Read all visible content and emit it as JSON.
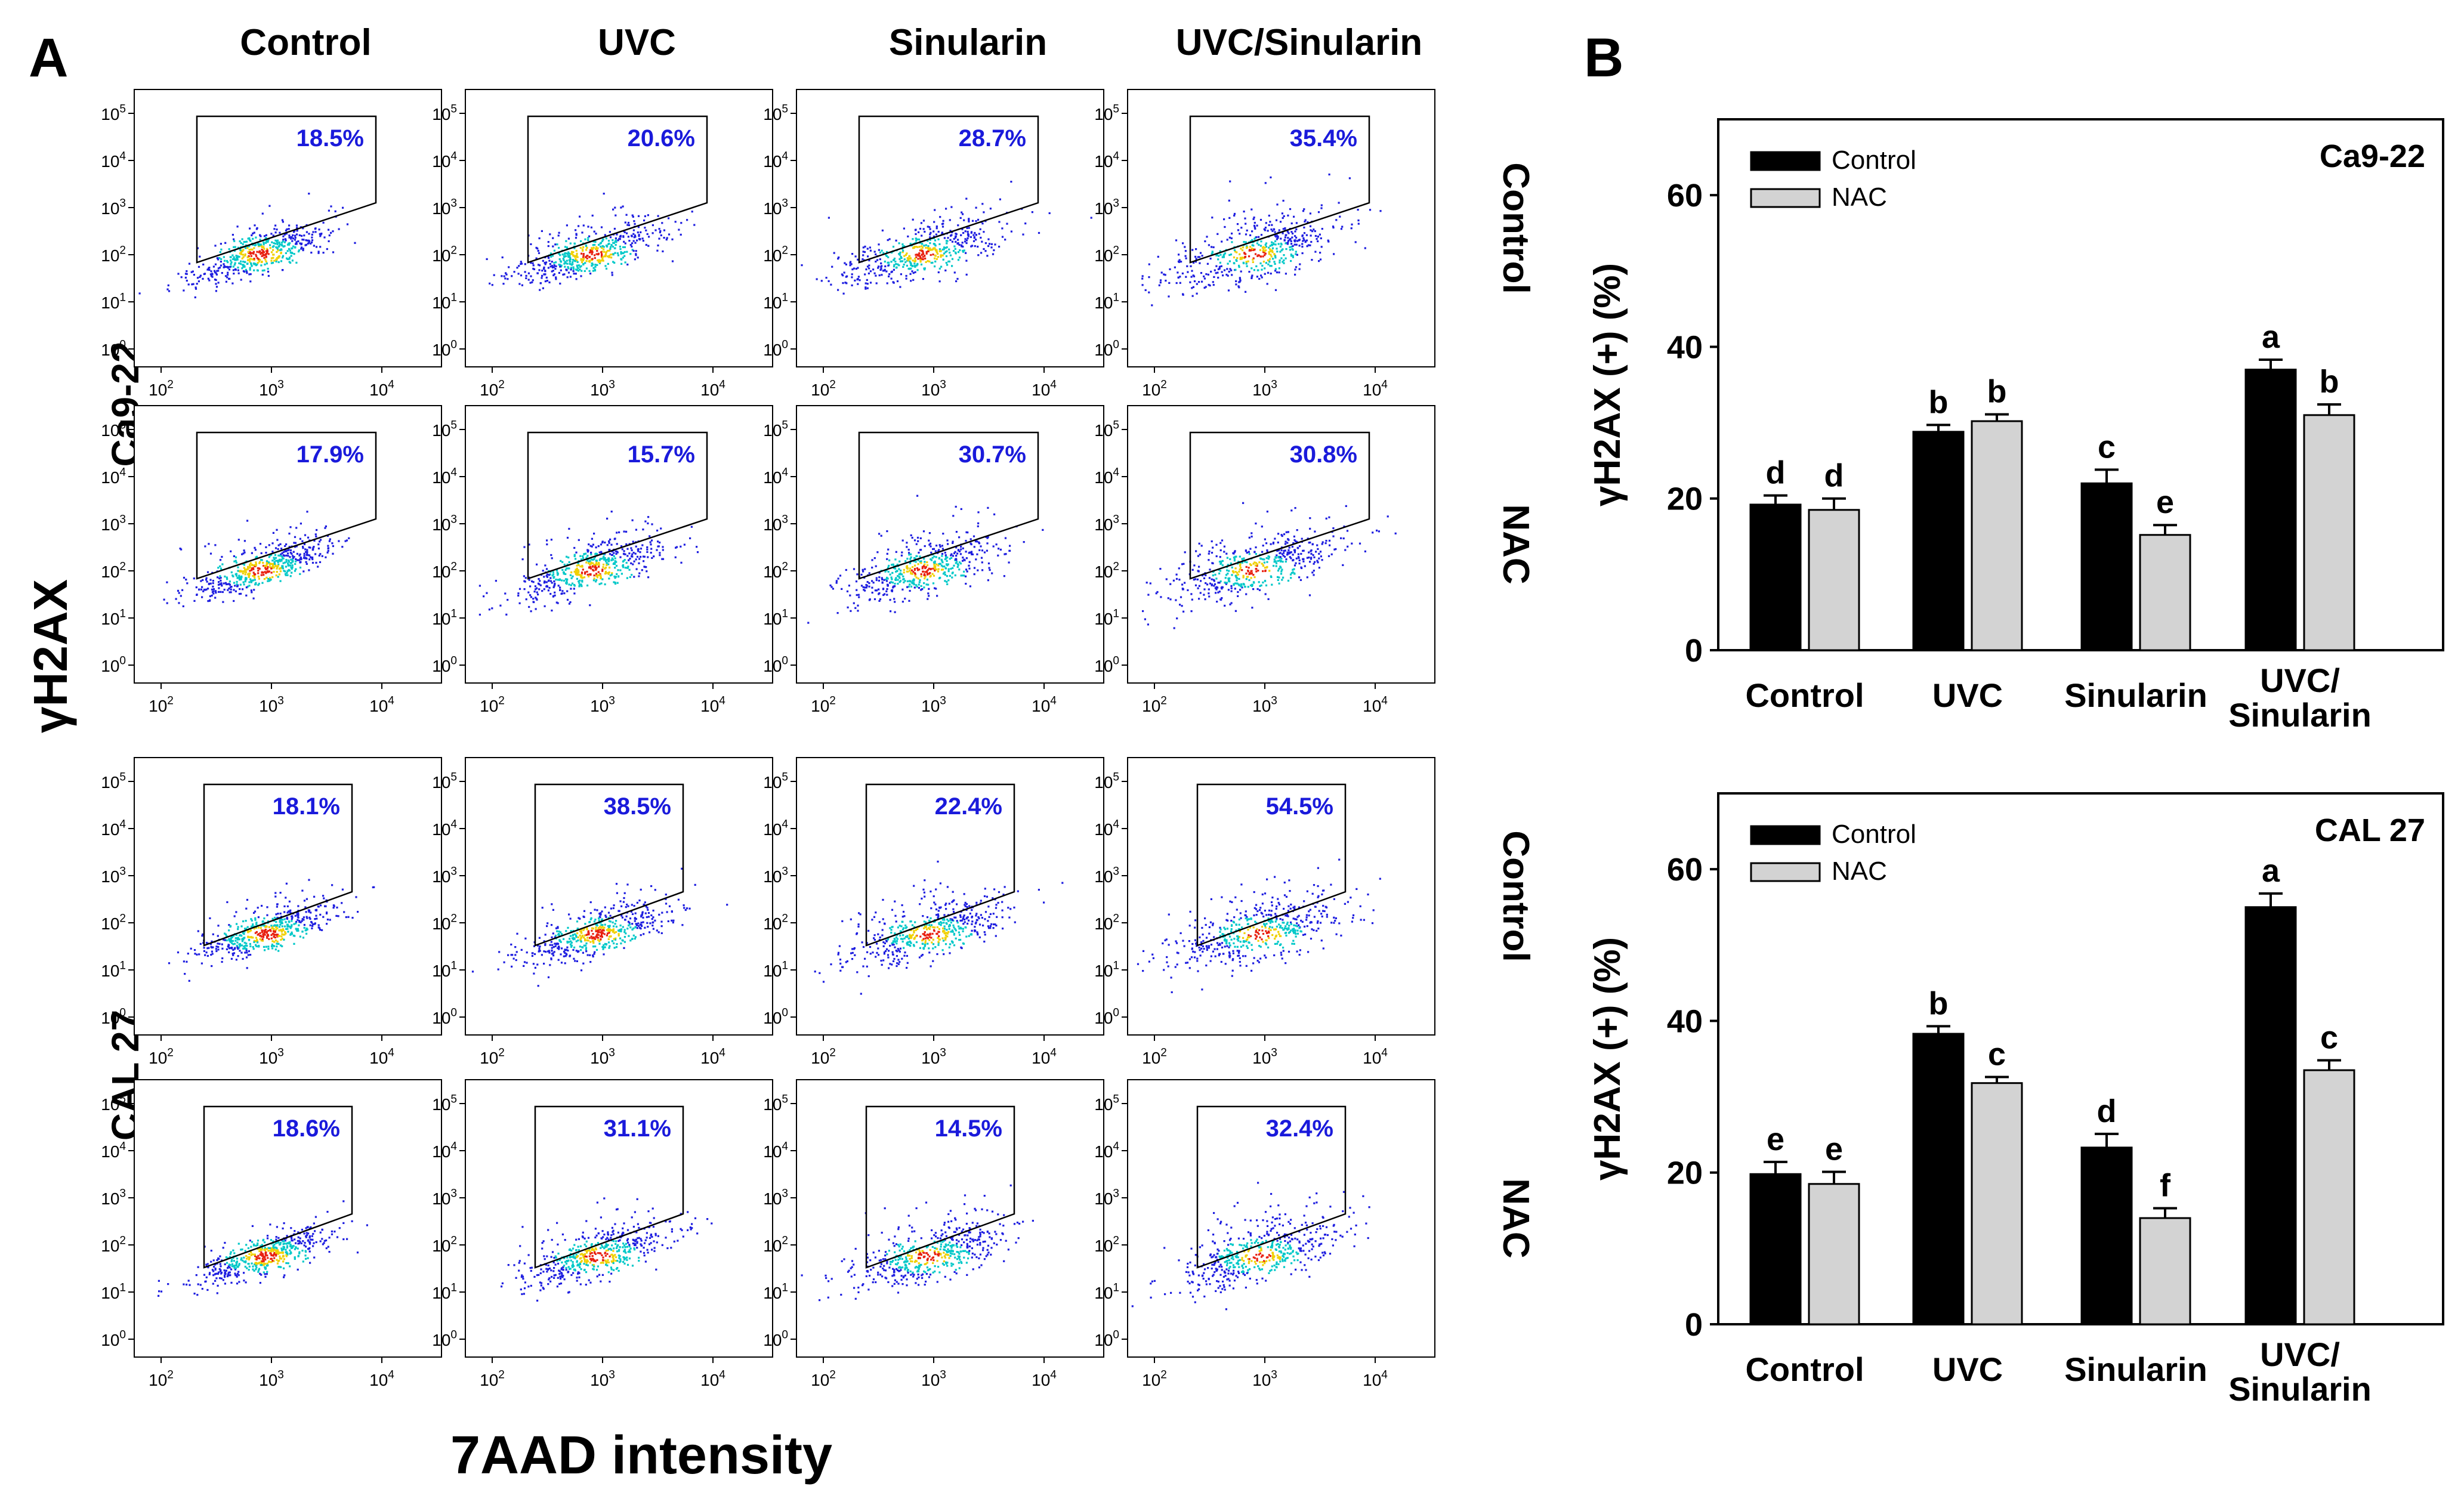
{
  "panels": {
    "a": "A",
    "b": "B"
  },
  "flow": {
    "columns": [
      "Control",
      "UVC",
      "Sinularin",
      "UVC/Sinularin"
    ],
    "row_groups": [
      {
        "cell_line": "Ca9-22",
        "rows": [
          {
            "label": "Control",
            "pct": [
              "18.5%",
              "20.6%",
              "28.7%",
              "35.4%"
            ]
          },
          {
            "label": "NAC",
            "pct": [
              "17.9%",
              "15.7%",
              "30.7%",
              "30.8%"
            ]
          }
        ]
      },
      {
        "cell_line": "CAL 27",
        "rows": [
          {
            "label": "Control",
            "pct": [
              "18.1%",
              "38.5%",
              "22.4%",
              "54.5%"
            ]
          },
          {
            "label": "NAC",
            "pct": [
              "18.6%",
              "31.1%",
              "14.5%",
              "32.4%"
            ]
          }
        ]
      }
    ],
    "y_axis_label": "γH2AX",
    "x_axis_label": "7AAD intensity",
    "y_tick_base": "10",
    "y_tick_exponents": [
      "0",
      "1",
      "2",
      "3",
      "4",
      "5"
    ],
    "x_tick_base": "10",
    "x_tick_exponents": [
      "2",
      "3",
      "4"
    ],
    "colors": {
      "percent_text": "#1a1adb",
      "dot_low": "#1e1ee0",
      "dot_mid": "#00c8c8",
      "dot_high": "#f0d000",
      "dot_peak": "#e82010"
    }
  },
  "chart_data": [
    {
      "type": "bar",
      "title": "Ca9-22",
      "xlabel": "",
      "ylabel": "γH2AX (+) (%)",
      "ylim": [
        0,
        70
      ],
      "yticks": [
        0,
        20,
        40,
        60
      ],
      "categories": [
        "Control",
        "UVC",
        "Sinularin",
        "UVC/\nSinularin"
      ],
      "legend": "top-left",
      "series": [
        {
          "name": "Control",
          "color": "#000000",
          "values": [
            19.2,
            28.8,
            22.0,
            37.0
          ],
          "errors": [
            1.2,
            0.9,
            1.8,
            1.3
          ],
          "letters": [
            "d",
            "b",
            "c",
            "a"
          ]
        },
        {
          "name": "NAC",
          "color": "#d3d3d3",
          "values": [
            18.5,
            30.2,
            15.2,
            31.0
          ],
          "errors": [
            1.5,
            0.9,
            1.3,
            1.4
          ],
          "letters": [
            "d",
            "b",
            "e",
            "b"
          ]
        }
      ]
    },
    {
      "type": "bar",
      "title": "CAL 27",
      "xlabel": "",
      "ylabel": "γH2AX (+) (%)",
      "ylim": [
        0,
        70
      ],
      "yticks": [
        0,
        20,
        40,
        60
      ],
      "categories": [
        "Control",
        "UVC",
        "Sinularin",
        "UVC/\nSinularin"
      ],
      "legend": "top-left",
      "series": [
        {
          "name": "Control",
          "color": "#000000",
          "values": [
            19.8,
            38.3,
            23.3,
            55.0
          ],
          "errors": [
            1.6,
            1.0,
            1.8,
            1.8
          ],
          "letters": [
            "e",
            "b",
            "d",
            "a"
          ]
        },
        {
          "name": "NAC",
          "color": "#d3d3d3",
          "values": [
            18.5,
            31.8,
            14.0,
            33.5
          ],
          "errors": [
            1.6,
            0.8,
            1.3,
            1.3
          ],
          "letters": [
            "e",
            "c",
            "f",
            "c"
          ]
        }
      ]
    }
  ]
}
